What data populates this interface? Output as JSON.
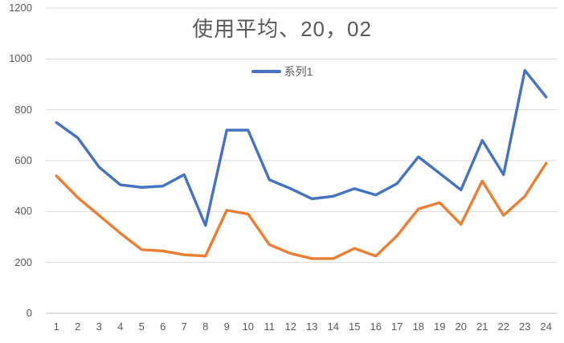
{
  "title": "使用平均、20，02",
  "legend": {
    "entries": [
      {
        "label": "系列1",
        "color": "#4472C4"
      }
    ]
  },
  "chart_data": {
    "type": "line",
    "title": "使用平均、20，02",
    "categories": [
      1,
      2,
      3,
      4,
      5,
      6,
      7,
      8,
      9,
      10,
      11,
      12,
      13,
      14,
      15,
      16,
      17,
      18,
      19,
      20,
      21,
      22,
      23,
      24
    ],
    "series": [
      {
        "name": "系列1",
        "color": "#4472C4",
        "values": [
          750,
          690,
          575,
          505,
          495,
          500,
          545,
          345,
          720,
          720,
          525,
          490,
          450,
          460,
          490,
          465,
          510,
          615,
          550,
          485,
          680,
          545,
          955,
          850
        ]
      },
      {
        "name": null,
        "color": "#ED7D31",
        "values": [
          540,
          455,
          385,
          315,
          250,
          245,
          230,
          225,
          405,
          390,
          270,
          235,
          215,
          215,
          255,
          225,
          305,
          410,
          435,
          350,
          520,
          385,
          460,
          590
        ]
      }
    ],
    "xlabel": "",
    "ylabel": "",
    "ylim": [
      0,
      1200
    ],
    "yticks": [
      0,
      200,
      400,
      600,
      800,
      1000,
      1200
    ],
    "grid": true,
    "legend_position": "top-center",
    "legend_visible_entries": [
      "系列1"
    ]
  },
  "colors": {
    "background": "#FFFFFF",
    "gridline": "#D9D9D9",
    "axis_line": "#BFBFBF",
    "tick_label": "#595959",
    "title": "#595959"
  }
}
